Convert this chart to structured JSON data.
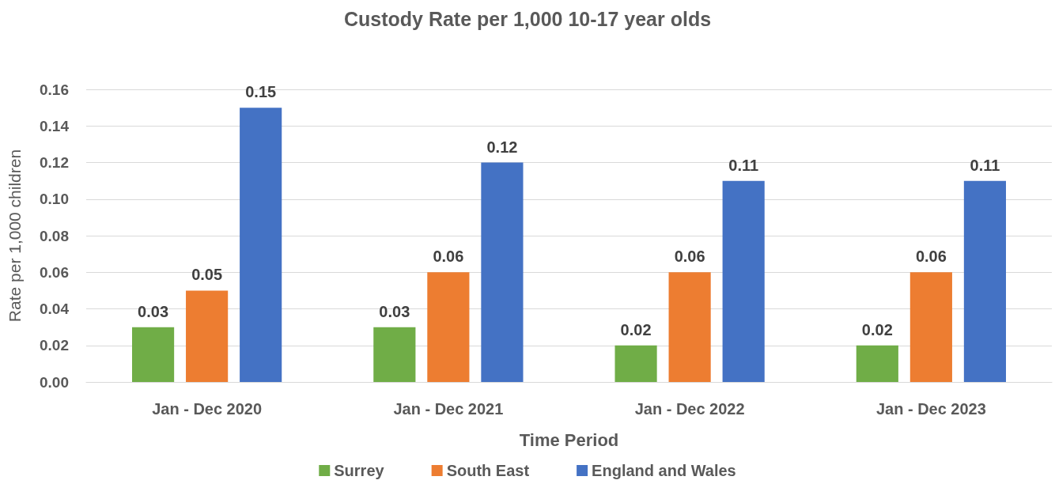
{
  "chart_data": {
    "type": "bar",
    "title": "Custody Rate per 1,000 10-17 year olds",
    "xlabel": "Time Period",
    "ylabel": "Rate per 1,000 children",
    "categories": [
      "Jan - Dec 2020",
      "Jan - Dec 2021",
      "Jan - Dec 2022",
      "Jan - Dec 2023"
    ],
    "series": [
      {
        "name": "Surrey",
        "color": "#70ad47",
        "values": [
          0.03,
          0.03,
          0.02,
          0.02
        ]
      },
      {
        "name": "South East",
        "color": "#ed7d31",
        "values": [
          0.05,
          0.06,
          0.06,
          0.06
        ]
      },
      {
        "name": "England and Wales",
        "color": "#4472c4",
        "values": [
          0.15,
          0.12,
          0.11,
          0.11
        ]
      }
    ],
    "ylim": [
      0,
      0.16
    ],
    "yticks": [
      {
        "value": 0,
        "label": "0.00"
      },
      {
        "value": 0.02,
        "label": "0.02"
      },
      {
        "value": 0.04,
        "label": "0.04"
      },
      {
        "value": 0.06,
        "label": "0.06"
      },
      {
        "value": 0.08,
        "label": "0.08"
      },
      {
        "value": 0.1,
        "label": "0.10"
      },
      {
        "value": 0.12,
        "label": "0.12"
      },
      {
        "value": 0.14,
        "label": "0.14"
      },
      {
        "value": 0.16,
        "label": "0.16"
      }
    ],
    "grid": "y",
    "legend": "bottom",
    "data_labels": true
  }
}
